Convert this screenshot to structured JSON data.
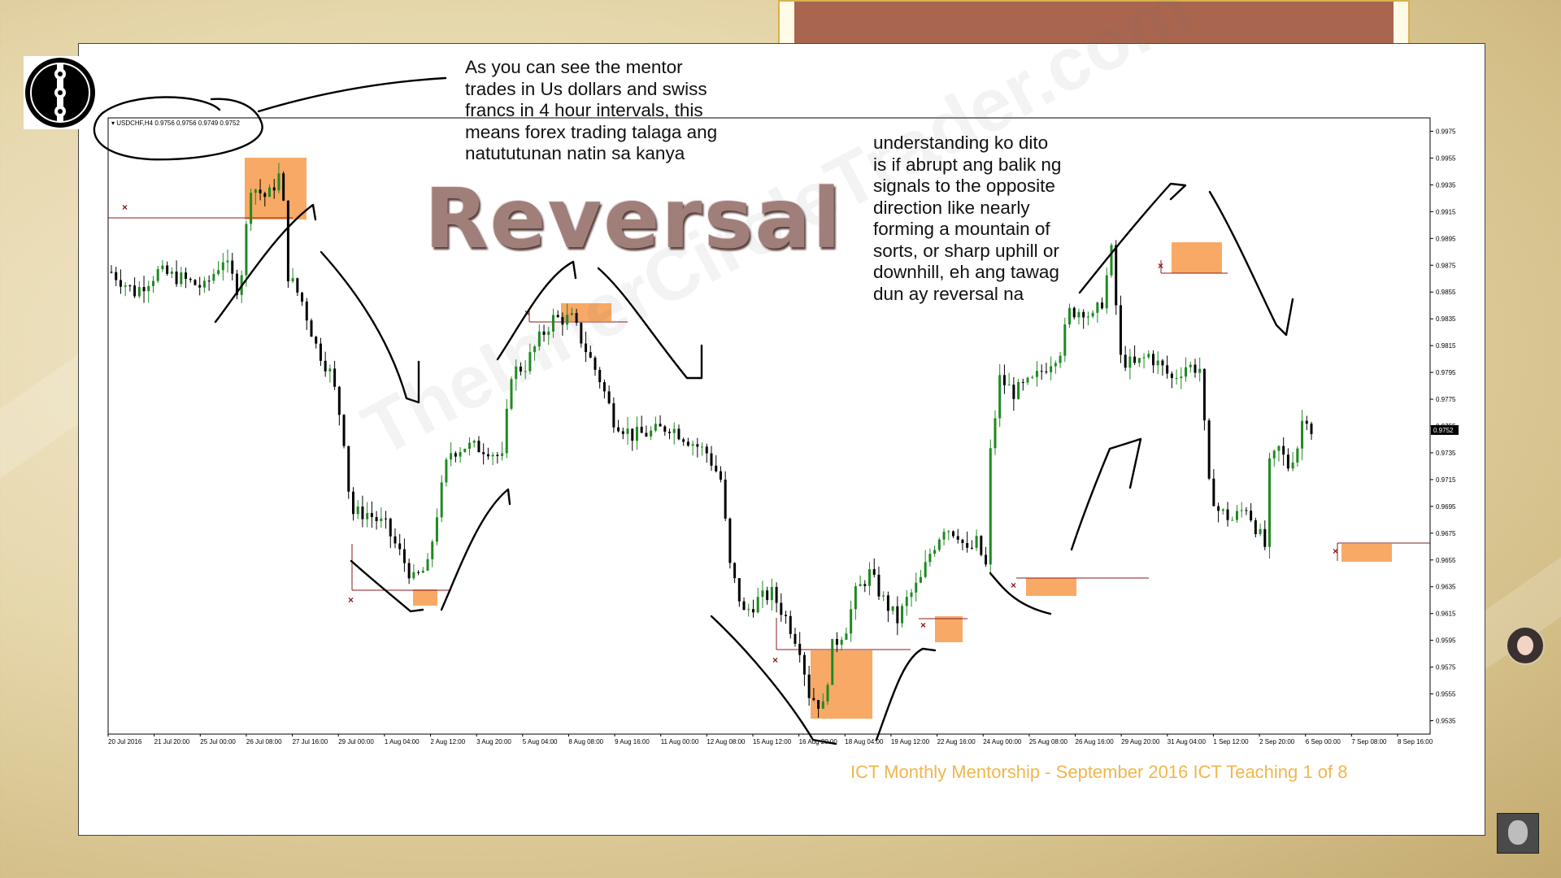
{
  "slide": {
    "symbol_label": "▾ USDCHF,H4  0.9756 0.9756 0.9749 0.9752",
    "note_top": "As you can see the mentor\ntrades in Us dollars and swiss\nfrancs in 4 hour intervals, this\nmeans forex trading talaga ang\nnatututunan natin sa kanya",
    "note_right": "understanding ko dito\nis if abrupt ang balik ng\nsignals to the opposite\ndirection like nearly\nforming a mountain of\nsorts, or sharp uphill or\ndownhill, eh ang tawag\ndun ay reversal na",
    "title": "Reversal",
    "footer": "ICT Monthly Mentorship - September 2016 ICT Teaching 1 of 8",
    "watermark": "TheInnerCircleTrader.com"
  },
  "colors": {
    "bull": "#1e8a22",
    "bear": "#000000",
    "highlight_box": "#f79a4a",
    "level_line": "#8b1a1a",
    "banner_fill": "#a9654e",
    "footer_text": "#f0b64b",
    "background": "#e6d7ac"
  },
  "chart_data": {
    "type": "candlestick",
    "symbol": "USDCHF",
    "timeframe": "H4",
    "current_price": 0.9752,
    "ylim": [
      0.9525,
      0.9985
    ],
    "y_ticks": [
      "0.9975",
      "0.9955",
      "0.9935",
      "0.9915",
      "0.9895",
      "0.9875",
      "0.9855",
      "0.9835",
      "0.9815",
      "0.9795",
      "0.9775",
      "0.9755",
      "0.9735",
      "0.9715",
      "0.9695",
      "0.9675",
      "0.9655",
      "0.9635",
      "0.9615",
      "0.9595",
      "0.9575",
      "0.9555",
      "0.9535"
    ],
    "x_labels": [
      "20 Jul 2016",
      "21 Jul 20:00",
      "25 Jul 00:00",
      "26 Jul 08:00",
      "27 Jul 16:00",
      "29 Jul 00:00",
      "1 Aug 04:00",
      "2 Aug 12:00",
      "3 Aug 20:00",
      "5 Aug 04:00",
      "8 Aug 08:00",
      "9 Aug 16:00",
      "11 Aug 00:00",
      "12 Aug 08:00",
      "15 Aug 12:00",
      "16 Aug 20:00",
      "18 Aug 04:00",
      "19 Aug 12:00",
      "22 Aug 16:00",
      "24 Aug 00:00",
      "25 Aug 08:00",
      "26 Aug 16:00",
      "29 Aug 20:00",
      "31 Aug 04:00",
      "1 Sep 12:00",
      "2 Sep 20:00",
      "6 Sep 00:00",
      "7 Sep 08:00",
      "8 Sep 16:00"
    ],
    "close_path": [
      [
        0,
        0.987
      ],
      [
        10,
        0.9855
      ],
      [
        20,
        0.987
      ],
      [
        30,
        0.9865
      ],
      [
        40,
        0.9858
      ],
      [
        48,
        0.988
      ],
      [
        55,
        0.9855
      ],
      [
        60,
        0.9935
      ],
      [
        67,
        0.9925
      ],
      [
        73,
        0.9945
      ],
      [
        76,
        0.9868
      ],
      [
        82,
        0.9848
      ],
      [
        88,
        0.9815
      ],
      [
        94,
        0.9795
      ],
      [
        97,
        0.9775
      ],
      [
        100,
        0.9745
      ],
      [
        103,
        0.969
      ],
      [
        110,
        0.969
      ],
      [
        118,
        0.968
      ],
      [
        124,
        0.966
      ],
      [
        130,
        0.964
      ],
      [
        136,
        0.965
      ],
      [
        140,
        0.969
      ],
      [
        145,
        0.9735
      ],
      [
        152,
        0.974
      ],
      [
        162,
        0.9738
      ],
      [
        168,
        0.973
      ],
      [
        172,
        0.9795
      ],
      [
        178,
        0.98
      ],
      [
        184,
        0.982
      ],
      [
        190,
        0.9835
      ],
      [
        198,
        0.9835
      ],
      [
        204,
        0.9812
      ],
      [
        210,
        0.979
      ],
      [
        216,
        0.976
      ],
      [
        224,
        0.9748
      ],
      [
        232,
        0.975
      ],
      [
        240,
        0.9755
      ],
      [
        248,
        0.9745
      ],
      [
        256,
        0.9735
      ],
      [
        262,
        0.9715
      ],
      [
        266,
        0.965
      ],
      [
        272,
        0.9615
      ],
      [
        278,
        0.9625
      ],
      [
        284,
        0.963
      ],
      [
        290,
        0.9612
      ],
      [
        296,
        0.959
      ],
      [
        300,
        0.9555
      ],
      [
        306,
        0.9545
      ],
      [
        310,
        0.959
      ],
      [
        316,
        0.9605
      ],
      [
        320,
        0.963
      ],
      [
        326,
        0.9645
      ],
      [
        332,
        0.9625
      ],
      [
        338,
        0.961
      ],
      [
        342,
        0.9625
      ],
      [
        348,
        0.964
      ],
      [
        352,
        0.966
      ],
      [
        358,
        0.968
      ],
      [
        364,
        0.9675
      ],
      [
        368,
        0.966
      ],
      [
        372,
        0.9668
      ],
      [
        376,
        0.965
      ],
      [
        378,
        0.9735
      ],
      [
        382,
        0.979
      ],
      [
        388,
        0.978
      ],
      [
        396,
        0.9788
      ],
      [
        402,
        0.98
      ],
      [
        408,
        0.9812
      ],
      [
        412,
        0.984
      ],
      [
        418,
        0.9842
      ],
      [
        422,
        0.9835
      ],
      [
        426,
        0.9848
      ],
      [
        430,
        0.9885
      ],
      [
        434,
        0.9805
      ],
      [
        440,
        0.98
      ],
      [
        446,
        0.9808
      ],
      [
        452,
        0.9798
      ],
      [
        456,
        0.979
      ],
      [
        462,
        0.98
      ],
      [
        468,
        0.9798
      ],
      [
        472,
        0.971
      ],
      [
        476,
        0.9692
      ],
      [
        482,
        0.9685
      ],
      [
        488,
        0.9695
      ],
      [
        492,
        0.968
      ],
      [
        496,
        0.9665
      ],
      [
        498,
        0.9725
      ],
      [
        502,
        0.9738
      ],
      [
        506,
        0.9725
      ],
      [
        510,
        0.974
      ],
      [
        513,
        0.9768
      ],
      [
        516,
        0.9752
      ]
    ]
  }
}
